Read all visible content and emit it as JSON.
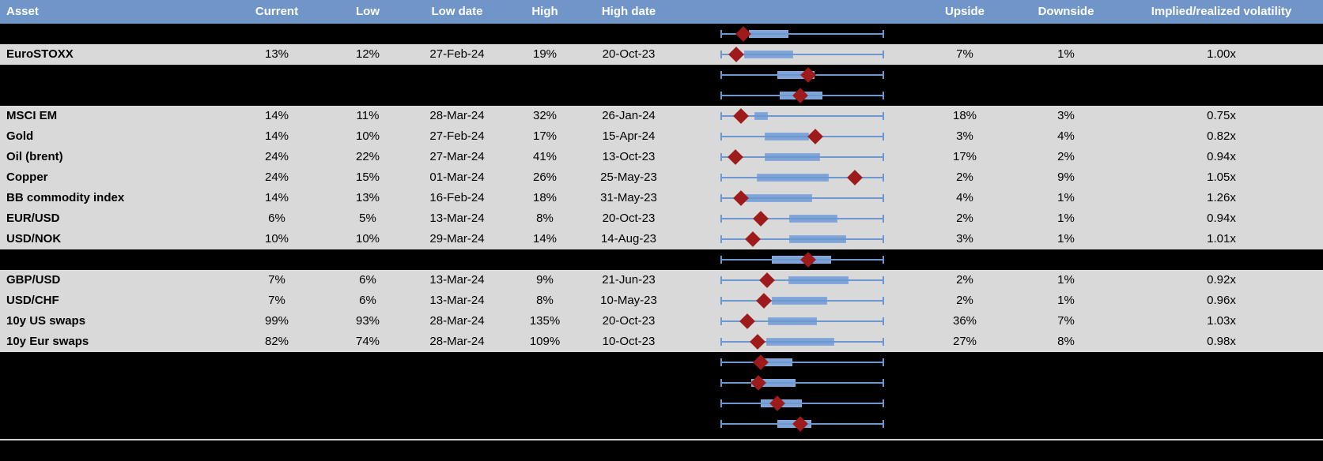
{
  "header": {
    "columns": [
      "Asset",
      "Current",
      "Low",
      "Low date",
      "High",
      "High date",
      "",
      "Upside",
      "Downside",
      "Implied/realized volatility"
    ]
  },
  "colors": {
    "header_bg": "#7096c9",
    "header_text": "#ffffff",
    "row_bg": "#d9d9d9",
    "hidden_bg": "#000000",
    "box_fill": "#7ea3d7",
    "box_border": "#8aabdb",
    "whisker_blue": "#6d97cf",
    "marker_red": "#9e1b1b",
    "divider_gray": "#cfcfcf",
    "text": "#000000"
  },
  "rows": [
    {
      "hidden": true,
      "asset": "",
      "current": "",
      "low": "",
      "low_date": "",
      "high": "",
      "high_date": "",
      "upside": "",
      "downside": "",
      "implied_realized": "",
      "box": [
        0.17,
        0.415
      ],
      "marker": 0.135
    },
    {
      "hidden": false,
      "asset": "EuroSTOXX",
      "current": "13%",
      "low": "12%",
      "low_date": "27-Feb-24",
      "high": "19%",
      "high_date": "20-Oct-23",
      "upside": "7%",
      "downside": "1%",
      "implied_realized": "1.00x",
      "box": [
        0.14,
        0.445
      ],
      "marker": 0.095
    },
    {
      "hidden": true,
      "asset": "",
      "current": "",
      "low": "",
      "low_date": "",
      "high": "",
      "high_date": "",
      "upside": "",
      "downside": "",
      "implied_realized": "",
      "box": [
        0.345,
        0.575
      ],
      "marker": 0.535
    },
    {
      "hidden": true,
      "asset": "",
      "current": "",
      "low": "",
      "low_date": "",
      "high": "",
      "high_date": "",
      "upside": "",
      "downside": "",
      "implied_realized": "",
      "box": [
        0.36,
        0.625
      ],
      "marker": 0.49
    },
    {
      "hidden": false,
      "asset": "MSCI EM",
      "current": "14%",
      "low": "11%",
      "low_date": "28-Mar-24",
      "high": "32%",
      "high_date": "26-Jan-24",
      "upside": "18%",
      "downside": "3%",
      "implied_realized": "0.75x",
      "box": [
        0.205,
        0.29
      ],
      "marker": 0.12
    },
    {
      "hidden": false,
      "asset": "Gold",
      "current": "14%",
      "low": "10%",
      "low_date": "27-Feb-24",
      "high": "17%",
      "high_date": "15-Apr-24",
      "upside": "3%",
      "downside": "4%",
      "implied_realized": "0.82x",
      "box": [
        0.27,
        0.54
      ],
      "marker": 0.58
    },
    {
      "hidden": false,
      "asset": "Oil (brent)",
      "current": "24%",
      "low": "22%",
      "low_date": "27-Mar-24",
      "high": "41%",
      "high_date": "13-Oct-23",
      "upside": "17%",
      "downside": "2%",
      "implied_realized": "0.94x",
      "box": [
        0.27,
        0.61
      ],
      "marker": 0.086
    },
    {
      "hidden": false,
      "asset": "Copper",
      "current": "24%",
      "low": "15%",
      "low_date": "01-Mar-24",
      "high": "26%",
      "high_date": "25-May-23",
      "upside": "2%",
      "downside": "9%",
      "implied_realized": "1.05x",
      "box": [
        0.22,
        0.665
      ],
      "marker": 0.825
    },
    {
      "hidden": false,
      "asset": "BB commodity index",
      "current": "14%",
      "low": "13%",
      "low_date": "16-Feb-24",
      "high": "18%",
      "high_date": "31-May-23",
      "upside": "4%",
      "downside": "1%",
      "implied_realized": "1.26x",
      "box": [
        0.145,
        0.56
      ],
      "marker": 0.12
    },
    {
      "hidden": false,
      "asset": "EUR/USD",
      "current": "6%",
      "low": "5%",
      "low_date": "13-Mar-24",
      "high": "8%",
      "high_date": "20-Oct-23",
      "upside": "2%",
      "downside": "1%",
      "implied_realized": "0.94x",
      "box": [
        0.42,
        0.715
      ],
      "marker": 0.242
    },
    {
      "hidden": false,
      "asset": "USD/NOK",
      "current": "10%",
      "low": "10%",
      "low_date": "29-Mar-24",
      "high": "14%",
      "high_date": "14-Aug-23",
      "upside": "3%",
      "downside": "1%",
      "implied_realized": "1.01x",
      "box": [
        0.42,
        0.77
      ],
      "marker": 0.195
    },
    {
      "hidden": true,
      "asset": "",
      "current": "",
      "low": "",
      "low_date": "",
      "high": "",
      "high_date": "",
      "upside": "",
      "downside": "",
      "implied_realized": "",
      "box": [
        0.31,
        0.68
      ],
      "marker": 0.535
    },
    {
      "hidden": false,
      "asset": "GBP/USD",
      "current": "7%",
      "low": "6%",
      "low_date": "13-Mar-24",
      "high": "9%",
      "high_date": "21-Jun-23",
      "upside": "2%",
      "downside": "1%",
      "implied_realized": "0.92x",
      "box": [
        0.415,
        0.785
      ],
      "marker": 0.285
    },
    {
      "hidden": false,
      "asset": "USD/CHF",
      "current": "7%",
      "low": "6%",
      "low_date": "13-Mar-24",
      "high": "8%",
      "high_date": "10-May-23",
      "upside": "2%",
      "downside": "1%",
      "implied_realized": "0.96x",
      "box": [
        0.31,
        0.655
      ],
      "marker": 0.265
    },
    {
      "hidden": false,
      "asset": "10y US swaps",
      "current": "99%",
      "low": "93%",
      "low_date": "28-Mar-24",
      "high": "135%",
      "high_date": "20-Oct-23",
      "upside": "36%",
      "downside": "7%",
      "implied_realized": "1.03x",
      "box": [
        0.29,
        0.59
      ],
      "marker": 0.16
    },
    {
      "hidden": false,
      "asset": "10y Eur swaps",
      "current": "82%",
      "low": "74%",
      "low_date": "28-Mar-24",
      "high": "109%",
      "high_date": "10-Oct-23",
      "upside": "27%",
      "downside": "8%",
      "implied_realized": "0.98x",
      "box": [
        0.28,
        0.7
      ],
      "marker": 0.223
    },
    {
      "hidden": true,
      "asset": "",
      "current": "",
      "low": "",
      "low_date": "",
      "high": "",
      "high_date": "",
      "upside": "",
      "downside": "",
      "implied_realized": "",
      "box": [
        0.22,
        0.44
      ],
      "marker": 0.242
    },
    {
      "hidden": true,
      "asset": "",
      "current": "",
      "low": "",
      "low_date": "",
      "high": "",
      "high_date": "",
      "upside": "",
      "downside": "",
      "implied_realized": "",
      "box": [
        0.185,
        0.46
      ],
      "marker": 0.228
    },
    {
      "hidden": true,
      "asset": "",
      "current": "",
      "low": "",
      "low_date": "",
      "high": "",
      "high_date": "",
      "upside": "",
      "downside": "",
      "implied_realized": "",
      "box": [
        0.245,
        0.5
      ],
      "marker": 0.345
    },
    {
      "hidden": true,
      "asset": "",
      "current": "",
      "low": "",
      "low_date": "",
      "high": "",
      "high_date": "",
      "upside": "",
      "downside": "",
      "implied_realized": "",
      "box": [
        0.345,
        0.555
      ],
      "marker": 0.49
    }
  ],
  "chart_data": {
    "type": "boxplot",
    "orientation": "horizontal",
    "description": "Per-row 52-week range box plots, normalized 0-1 between each asset's low and high; red diamond marks current value position (current-low)/(high-low)",
    "axis_range": [
      0,
      1
    ],
    "series": [
      {
        "name": "hidden-row-1",
        "box": [
          0.17,
          0.415
        ],
        "whiskers": [
          0,
          1
        ],
        "marker": 0.135
      },
      {
        "name": "EuroSTOXX",
        "box": [
          0.14,
          0.445
        ],
        "whiskers": [
          0,
          1
        ],
        "marker": 0.095
      },
      {
        "name": "hidden-row-2",
        "box": [
          0.345,
          0.575
        ],
        "whiskers": [
          0,
          1
        ],
        "marker": 0.535
      },
      {
        "name": "hidden-row-3",
        "box": [
          0.36,
          0.625
        ],
        "whiskers": [
          0,
          1
        ],
        "marker": 0.49
      },
      {
        "name": "MSCI EM",
        "box": [
          0.205,
          0.29
        ],
        "whiskers": [
          0,
          1
        ],
        "marker": 0.12
      },
      {
        "name": "Gold",
        "box": [
          0.27,
          0.54
        ],
        "whiskers": [
          0,
          1
        ],
        "marker": 0.58
      },
      {
        "name": "Oil (brent)",
        "box": [
          0.27,
          0.61
        ],
        "whiskers": [
          0,
          1
        ],
        "marker": 0.086
      },
      {
        "name": "Copper",
        "box": [
          0.22,
          0.665
        ],
        "whiskers": [
          0,
          1
        ],
        "marker": 0.825
      },
      {
        "name": "BB commodity index",
        "box": [
          0.145,
          0.56
        ],
        "whiskers": [
          0,
          1
        ],
        "marker": 0.12
      },
      {
        "name": "EUR/USD",
        "box": [
          0.42,
          0.715
        ],
        "whiskers": [
          0,
          1
        ],
        "marker": 0.242
      },
      {
        "name": "USD/NOK",
        "box": [
          0.42,
          0.77
        ],
        "whiskers": [
          0,
          1
        ],
        "marker": 0.195
      },
      {
        "name": "hidden-row-4",
        "box": [
          0.31,
          0.68
        ],
        "whiskers": [
          0,
          1
        ],
        "marker": 0.535
      },
      {
        "name": "GBP/USD",
        "box": [
          0.415,
          0.785
        ],
        "whiskers": [
          0,
          1
        ],
        "marker": 0.285
      },
      {
        "name": "USD/CHF",
        "box": [
          0.31,
          0.655
        ],
        "whiskers": [
          0,
          1
        ],
        "marker": 0.265
      },
      {
        "name": "10y US swaps",
        "box": [
          0.29,
          0.59
        ],
        "whiskers": [
          0,
          1
        ],
        "marker": 0.16
      },
      {
        "name": "10y Eur swaps",
        "box": [
          0.28,
          0.7
        ],
        "whiskers": [
          0,
          1
        ],
        "marker": 0.223
      },
      {
        "name": "hidden-row-5",
        "box": [
          0.22,
          0.44
        ],
        "whiskers": [
          0,
          1
        ],
        "marker": 0.242
      },
      {
        "name": "hidden-row-6",
        "box": [
          0.185,
          0.46
        ],
        "whiskers": [
          0,
          1
        ],
        "marker": 0.228
      },
      {
        "name": "hidden-row-7",
        "box": [
          0.245,
          0.5
        ],
        "whiskers": [
          0,
          1
        ],
        "marker": 0.345
      },
      {
        "name": "hidden-row-8",
        "box": [
          0.345,
          0.555
        ],
        "whiskers": [
          0,
          1
        ],
        "marker": 0.49
      }
    ]
  }
}
